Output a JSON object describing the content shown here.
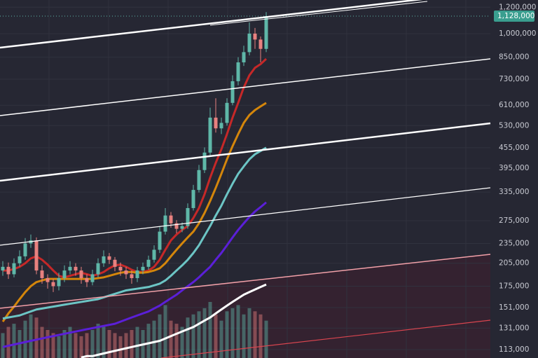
{
  "chart_data": {
    "type": "candlestick",
    "log_scale": true,
    "grid": true,
    "ylim": [
      106600,
      1261000
    ],
    "yticks": [
      {
        "value": 1200000,
        "label": "1,200,000"
      },
      {
        "value": 1000000,
        "label": "1,000,000"
      },
      {
        "value": 850000,
        "label": "850,000"
      },
      {
        "value": 730000,
        "label": "730,000"
      },
      {
        "value": 610000,
        "label": "610,000"
      },
      {
        "value": 530000,
        "label": "530,000"
      },
      {
        "value": 455000,
        "label": "455,000"
      },
      {
        "value": 395000,
        "label": "395,000"
      },
      {
        "value": 335000,
        "label": "335,000"
      },
      {
        "value": 275000,
        "label": "275,000"
      },
      {
        "value": 235000,
        "label": "235,000"
      },
      {
        "value": 205000,
        "label": "205,000"
      },
      {
        "value": 175000,
        "label": "175,000"
      },
      {
        "value": 151000,
        "label": "151,000"
      },
      {
        "value": 131000,
        "label": "131,000"
      },
      {
        "value": 113000,
        "label": "113,000"
      }
    ],
    "last_price": {
      "value": 1128000,
      "label": "1,128,000"
    },
    "up_color": "#5fb7a8",
    "down_color": "#e8817f",
    "candles": {
      "open": [
        195000,
        200000,
        190000,
        205000,
        215000,
        235000,
        240000,
        195000,
        185000,
        180000,
        175000,
        185000,
        195000,
        200000,
        195000,
        185000,
        180000,
        190000,
        205000,
        215000,
        210000,
        200000,
        195000,
        190000,
        185000,
        195000,
        200000,
        210000,
        225000,
        255000,
        285000,
        270000,
        260000,
        265000,
        300000,
        340000,
        390000,
        440000,
        560000,
        520000,
        540000,
        620000,
        720000,
        820000,
        880000,
        1000000,
        960000,
        900000
      ],
      "high": [
        208000,
        206000,
        212000,
        224000,
        244000,
        250000,
        245000,
        202000,
        190000,
        184000,
        192000,
        202000,
        208000,
        205000,
        200000,
        190000,
        196000,
        212000,
        224000,
        220000,
        214000,
        206000,
        200000,
        195000,
        200000,
        206000,
        216000,
        232000,
        264000,
        300000,
        292000,
        276000,
        272000,
        310000,
        352000,
        404000,
        456000,
        600000,
        640000,
        560000,
        640000,
        750000,
        850000,
        920000,
        1080000,
        1040000,
        980000,
        1160000
      ],
      "low": [
        188000,
        184000,
        186000,
        200000,
        210000,
        228000,
        190000,
        178000,
        172000,
        168000,
        170000,
        180000,
        190000,
        188000,
        178000,
        174000,
        176000,
        186000,
        200000,
        204000,
        194000,
        188000,
        184000,
        178000,
        180000,
        190000,
        196000,
        206000,
        220000,
        250000,
        262000,
        252000,
        254000,
        260000,
        295000,
        334000,
        382000,
        432000,
        505000,
        500000,
        530000,
        610000,
        700000,
        800000,
        860000,
        900000,
        820000,
        880000
      ],
      "close": [
        200000,
        190000,
        205000,
        215000,
        235000,
        240000,
        195000,
        185000,
        180000,
        175000,
        185000,
        195000,
        200000,
        195000,
        185000,
        180000,
        190000,
        205000,
        215000,
        210000,
        200000,
        195000,
        190000,
        185000,
        195000,
        200000,
        210000,
        225000,
        255000,
        285000,
        270000,
        260000,
        265000,
        300000,
        340000,
        390000,
        440000,
        560000,
        520000,
        540000,
        620000,
        720000,
        820000,
        880000,
        1000000,
        960000,
        900000,
        1128000
      ]
    },
    "volume": [
      40,
      50,
      55,
      45,
      60,
      70,
      65,
      50,
      45,
      40,
      35,
      45,
      50,
      40,
      35,
      40,
      45,
      55,
      50,
      45,
      40,
      35,
      40,
      45,
      50,
      45,
      55,
      60,
      70,
      85,
      60,
      55,
      50,
      65,
      70,
      75,
      80,
      90,
      70,
      60,
      75,
      80,
      85,
      70,
      80,
      75,
      70,
      60
    ],
    "moving_averages": [
      {
        "color": "#c62828",
        "values": [
          195000,
          195000,
          197000,
          200000,
          205000,
          212000,
          215000,
          210000,
          203000,
          195000,
          188000,
          186000,
          188000,
          190000,
          192000,
          190000,
          188000,
          190000,
          193000,
          198000,
          202000,
          203000,
          200000,
          196000,
          193000,
          193000,
          195000,
          200000,
          210000,
          225000,
          240000,
          250000,
          258000,
          265000,
          280000,
          300000,
          330000,
          370000,
          410000,
          450000,
          500000,
          560000,
          620000,
          690000,
          750000,
          790000,
          810000,
          840000
        ]
      },
      {
        "color": "#d4860b",
        "values": [
          137000,
          145000,
          152000,
          160000,
          168000,
          175000,
          180000,
          182000,
          184000,
          184000,
          184000,
          184000,
          184000,
          184000,
          184000,
          184000,
          184000,
          185000,
          186000,
          188000,
          190000,
          192000,
          193000,
          193000,
          192000,
          192000,
          193000,
          195000,
          198000,
          205000,
          215000,
          225000,
          235000,
          245000,
          255000,
          270000,
          290000,
          315000,
          345000,
          380000,
          420000,
          460000,
          500000,
          540000,
          570000,
          590000,
          605000,
          620000
        ]
      },
      {
        "color": "#6cc5c5",
        "values": [
          140000,
          141000,
          142000,
          143000,
          145000,
          147000,
          149000,
          150000,
          151000,
          152000,
          153000,
          154000,
          155000,
          156000,
          157000,
          158000,
          159000,
          160000,
          162000,
          164000,
          166000,
          168000,
          170000,
          171000,
          172000,
          173000,
          174000,
          176000,
          178000,
          182000,
          188000,
          195000,
          202000,
          210000,
          220000,
          232000,
          248000,
          265000,
          285000,
          305000,
          330000,
          355000,
          380000,
          400000,
          420000,
          435000,
          445000,
          455000
        ]
      },
      {
        "color": "#5b1fd8",
        "values": [
          115000,
          116000,
          117000,
          118000,
          119000,
          120000,
          121000,
          122000,
          123000,
          124000,
          125000,
          126000,
          127000,
          128000,
          129000,
          130000,
          131000,
          132000,
          133000,
          134000,
          135000,
          137000,
          139000,
          141000,
          143000,
          145000,
          147000,
          150000,
          153000,
          157000,
          161000,
          165000,
          170000,
          175000,
          180000,
          186000,
          193000,
          200000,
          210000,
          220000,
          232000,
          245000,
          258000,
          270000,
          282000,
          293000,
          302000,
          312000
        ]
      },
      {
        "color": "#ffffff",
        "values": [
          null,
          null,
          null,
          null,
          null,
          null,
          null,
          null,
          null,
          null,
          null,
          null,
          null,
          null,
          107000,
          108000,
          108000,
          109000,
          110000,
          111000,
          112000,
          113000,
          114000,
          115000,
          116000,
          117000,
          118000,
          119000,
          120000,
          122000,
          124000,
          126000,
          128000,
          130000,
          132000,
          135000,
          138000,
          141000,
          145000,
          149000,
          153000,
          157000,
          161000,
          165000,
          168000,
          171000,
          174000,
          177000
        ]
      }
    ]
  }
}
